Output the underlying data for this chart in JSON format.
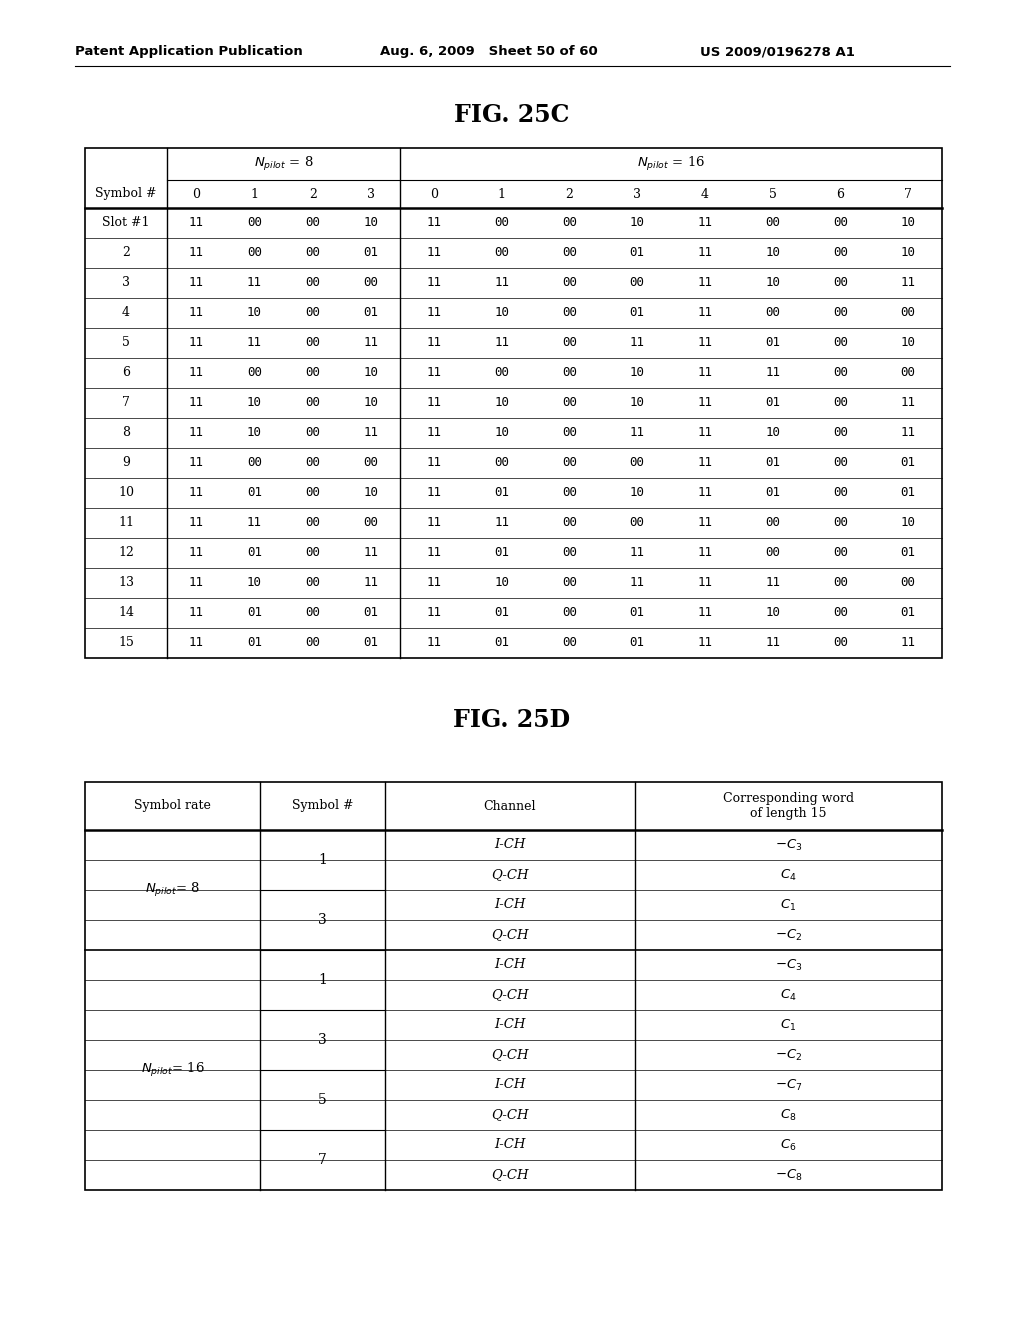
{
  "header_text_left": "Patent Application Publication",
  "header_text_mid": "Aug. 6, 2009   Sheet 50 of 60",
  "header_text_right": "US 2009/0196278 A1",
  "fig25c_title": "FIG. 25C",
  "fig25d_title": "FIG. 25D",
  "table25c_n8": [
    [
      "11",
      "00",
      "00",
      "10"
    ],
    [
      "11",
      "00",
      "00",
      "01"
    ],
    [
      "11",
      "11",
      "00",
      "00"
    ],
    [
      "11",
      "10",
      "00",
      "01"
    ],
    [
      "11",
      "11",
      "00",
      "11"
    ],
    [
      "11",
      "00",
      "00",
      "10"
    ],
    [
      "11",
      "10",
      "00",
      "10"
    ],
    [
      "11",
      "10",
      "00",
      "11"
    ],
    [
      "11",
      "00",
      "00",
      "00"
    ],
    [
      "11",
      "01",
      "00",
      "10"
    ],
    [
      "11",
      "11",
      "00",
      "00"
    ],
    [
      "11",
      "01",
      "00",
      "11"
    ],
    [
      "11",
      "10",
      "00",
      "11"
    ],
    [
      "11",
      "01",
      "00",
      "01"
    ],
    [
      "11",
      "01",
      "00",
      "01"
    ]
  ],
  "table25c_n16": [
    [
      "11",
      "00",
      "00",
      "10",
      "11",
      "00",
      "00",
      "10"
    ],
    [
      "11",
      "00",
      "00",
      "01",
      "11",
      "10",
      "00",
      "10"
    ],
    [
      "11",
      "11",
      "00",
      "00",
      "11",
      "10",
      "00",
      "11"
    ],
    [
      "11",
      "10",
      "00",
      "01",
      "11",
      "00",
      "00",
      "00"
    ],
    [
      "11",
      "11",
      "00",
      "11",
      "11",
      "01",
      "00",
      "10"
    ],
    [
      "11",
      "00",
      "00",
      "10",
      "11",
      "11",
      "00",
      "00"
    ],
    [
      "11",
      "10",
      "00",
      "10",
      "11",
      "01",
      "00",
      "11"
    ],
    [
      "11",
      "10",
      "00",
      "11",
      "11",
      "10",
      "00",
      "11"
    ],
    [
      "11",
      "00",
      "00",
      "00",
      "11",
      "01",
      "00",
      "01"
    ],
    [
      "11",
      "01",
      "00",
      "10",
      "11",
      "01",
      "00",
      "01"
    ],
    [
      "11",
      "11",
      "00",
      "00",
      "11",
      "00",
      "00",
      "10"
    ],
    [
      "11",
      "01",
      "00",
      "11",
      "11",
      "00",
      "00",
      "01"
    ],
    [
      "11",
      "10",
      "00",
      "11",
      "11",
      "11",
      "00",
      "00"
    ],
    [
      "11",
      "01",
      "00",
      "01",
      "11",
      "10",
      "00",
      "01"
    ],
    [
      "11",
      "01",
      "00",
      "01",
      "11",
      "11",
      "00",
      "11"
    ]
  ],
  "slot_labels": [
    "Slot #1",
    "2",
    "3",
    "4",
    "5",
    "6",
    "7",
    "8",
    "9",
    "10",
    "11",
    "12",
    "13",
    "14",
    "15"
  ],
  "background_color": "#ffffff",
  "text_color": "#000000"
}
